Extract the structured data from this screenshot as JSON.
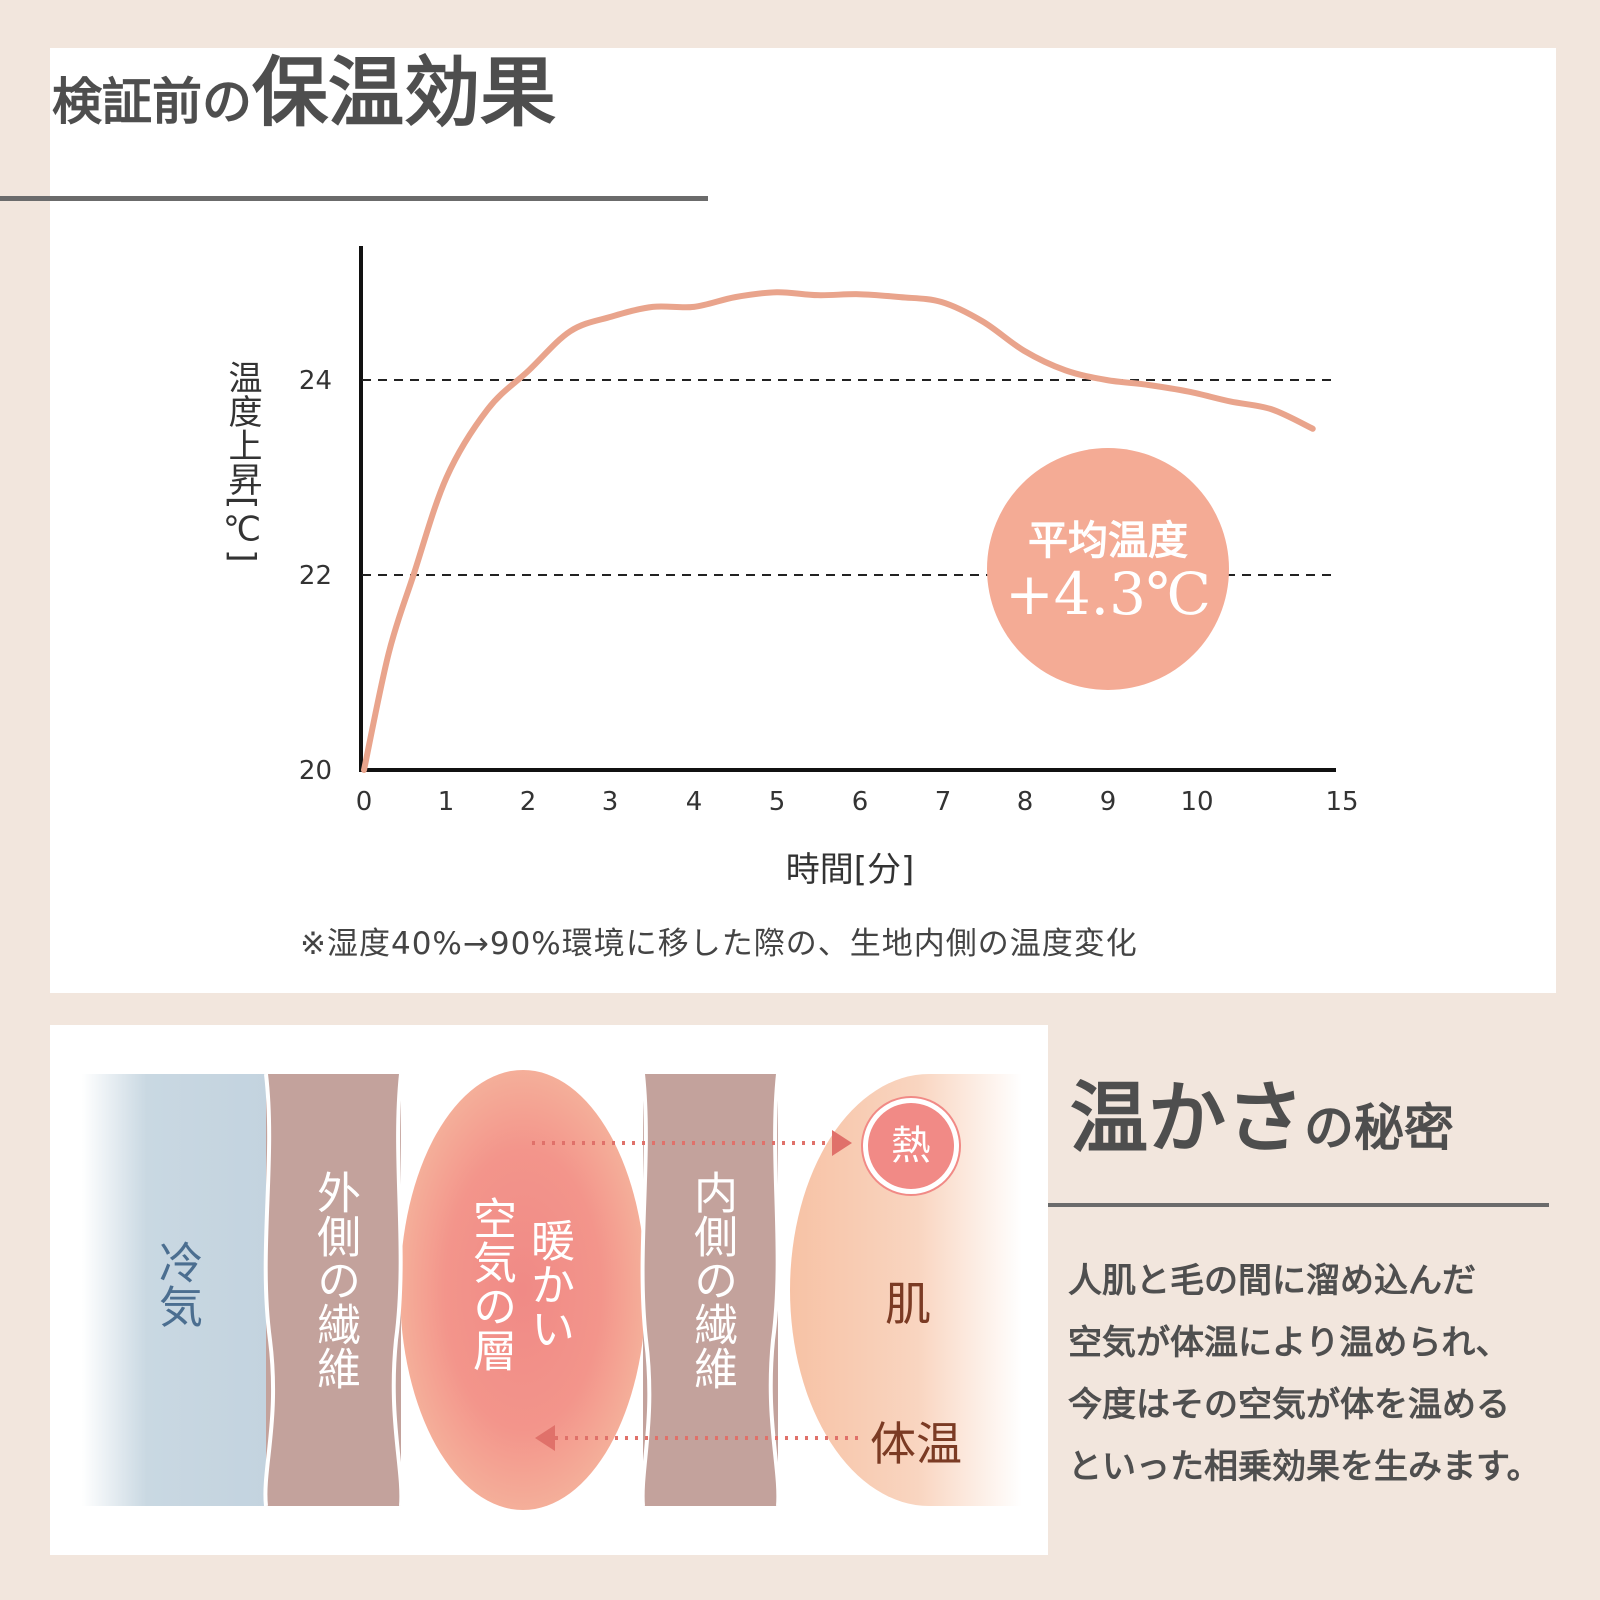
{
  "top": {
    "title_small": "検証前の",
    "title_big": "保温効果",
    "note": "※湿度40%→90%環境に移した際の、生地内側の温度変化",
    "badge_line1": "平均温度",
    "badge_line2": "+4.3℃"
  },
  "chart_data": {
    "type": "line",
    "ylabel": "温度上昇[℃]",
    "xlabel": "時間[分]",
    "xticks": [
      "0",
      "1",
      "2",
      "3",
      "4",
      "5",
      "6",
      "7",
      "8",
      "9",
      "10",
      "15"
    ],
    "yticks": [
      "20",
      "22",
      "24"
    ],
    "ylim": [
      20,
      25.3
    ],
    "grid_y": [
      22,
      24
    ],
    "series": [
      {
        "color": "#e9a48c",
        "x": [
          0,
          0.3,
          0.6,
          1,
          1.5,
          2,
          2.5,
          3,
          3.5,
          4,
          4.5,
          5,
          5.5,
          6,
          6.5,
          7,
          7.5,
          8,
          8.5,
          9,
          9.5,
          10,
          10.5,
          11,
          11.5
        ],
        "y": [
          20.0,
          21.2,
          22.0,
          23.0,
          23.7,
          24.1,
          24.5,
          24.65,
          24.75,
          24.75,
          24.85,
          24.9,
          24.87,
          24.88,
          24.85,
          24.8,
          24.6,
          24.3,
          24.1,
          24.0,
          23.95,
          23.88,
          23.78,
          23.7,
          23.5
        ]
      }
    ]
  },
  "bottom": {
    "cold": "冷気",
    "outer_fiber": "外側の繊維",
    "warm_air_1": "暖かい",
    "warm_air_2": "空気の層",
    "inner_fiber": "内側の繊維",
    "heat": "熱",
    "skin": "肌",
    "body_temp": "体温",
    "title_big": "温かさ",
    "title_small": "の秘密",
    "desc": [
      "人肌と毛の間に溜め込んだ",
      "空気が体温により温められ、",
      "今度はその空気が体を温める",
      "といった相乗効果を生みます。"
    ]
  }
}
